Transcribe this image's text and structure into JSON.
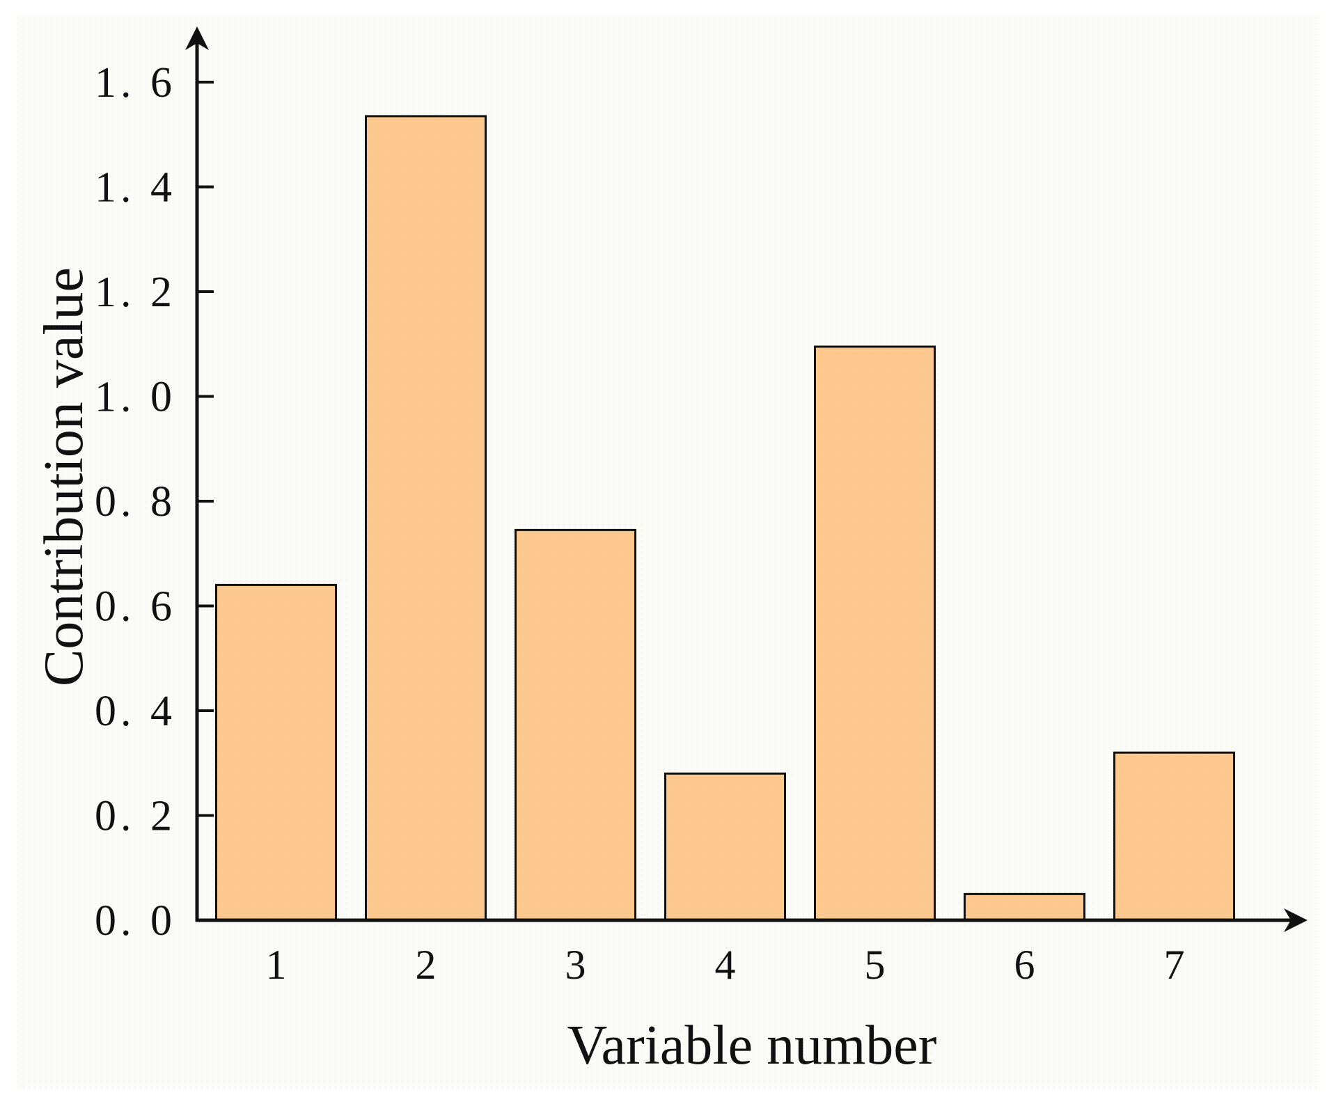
{
  "chart_data": {
    "type": "bar",
    "title": "",
    "xlabel": "Variable number",
    "ylabel": "Contribution value",
    "categories": [
      "1",
      "2",
      "3",
      "4",
      "5",
      "6",
      "7"
    ],
    "values": [
      0.64,
      1.535,
      0.745,
      0.28,
      1.095,
      0.05,
      0.32
    ],
    "ylim": [
      0,
      1.6
    ],
    "yticks": [
      "0. 0",
      "0. 2",
      "0. 4",
      "0. 6",
      "0. 8",
      "1. 0",
      "1. 2",
      "1. 4",
      "1. 6"
    ],
    "grid": false,
    "legend": "none",
    "colors": {
      "bar_fill": "#fdc88e",
      "bar_stroke": "#111111",
      "axis": "#111111",
      "background": "#fbfbf8"
    }
  }
}
